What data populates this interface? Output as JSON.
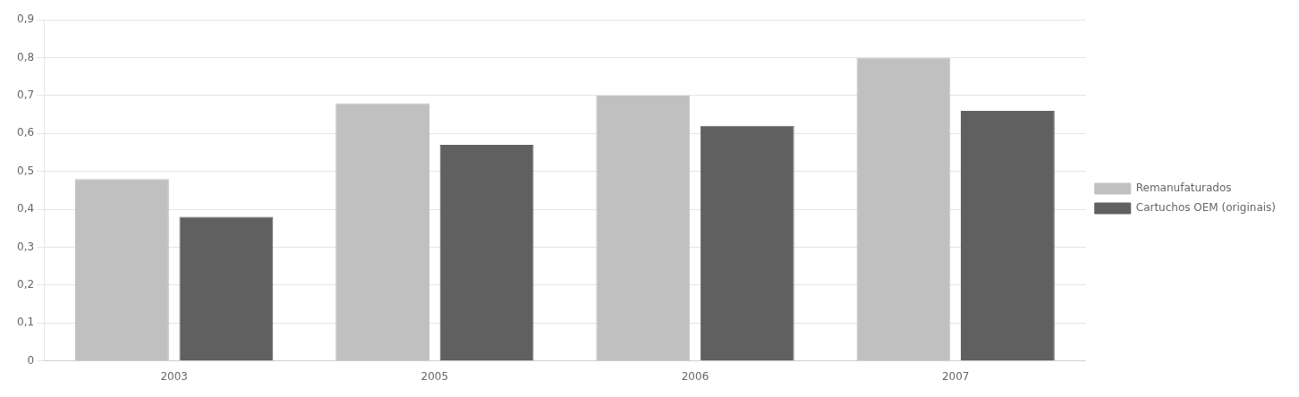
{
  "chart_data": {
    "type": "bar",
    "categories": [
      "2003",
      "2005",
      "2006",
      "2007"
    ],
    "series": [
      {
        "name": "Remanufaturados",
        "color": "#C0C0C0",
        "values": [
          0.48,
          0.68,
          0.7,
          0.8
        ]
      },
      {
        "name": "Cartuchos OEM (originais)",
        "color": "#606060",
        "values": [
          0.38,
          0.57,
          0.62,
          0.66
        ]
      }
    ],
    "ylim": [
      0,
      0.9
    ],
    "yticks": [
      0,
      {
        "value": 0.1,
        "label": "0,1"
      },
      {
        "value": 0.2,
        "label": "0,2"
      },
      {
        "value": 0.3,
        "label": "0,3"
      },
      {
        "value": 0.4,
        "label": "0,4"
      },
      {
        "value": 0.5,
        "label": "0,5"
      },
      {
        "value": 0.6,
        "label": "0,6"
      },
      {
        "value": 0.7,
        "label": "0,7"
      },
      {
        "value": 0.8,
        "label": "0,8"
      },
      {
        "value": 0.9,
        "label": "0,9"
      }
    ],
    "grid": true,
    "legend": "right"
  }
}
